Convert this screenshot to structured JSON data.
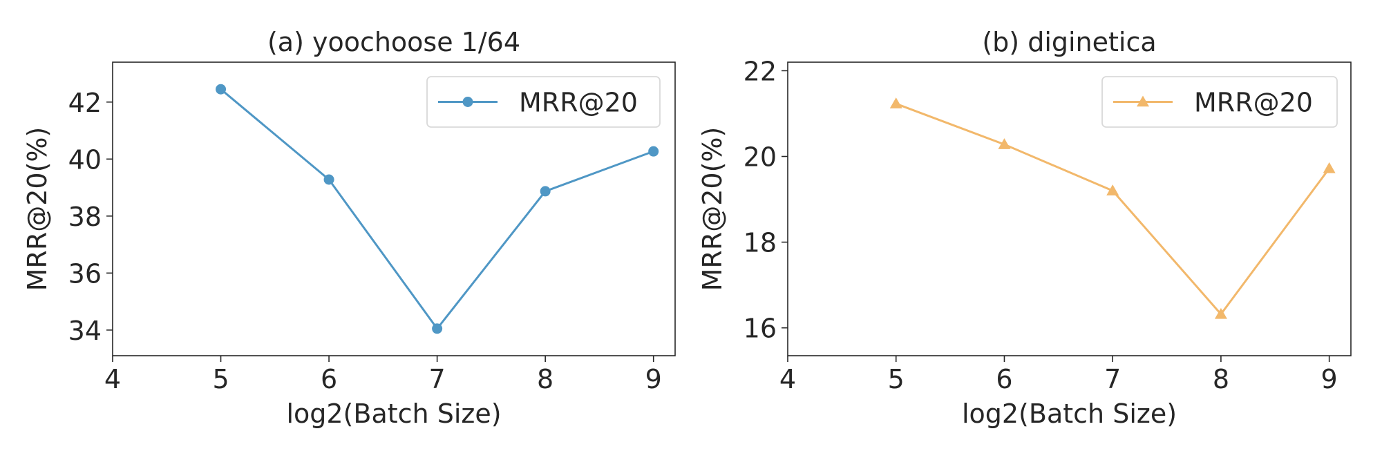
{
  "chart_data": [
    {
      "type": "line",
      "title": "(a) yoochoose 1/64",
      "xlabel": "log2(Batch Size)",
      "ylabel": "MRR@20(%)",
      "x": [
        5,
        6,
        7,
        8,
        9
      ],
      "series": [
        {
          "name": "MRR@20",
          "values": [
            42.45,
            39.28,
            34.05,
            38.87,
            40.27
          ],
          "color": "#4f97c5",
          "marker": "circle"
        }
      ],
      "xlim": [
        4,
        9.2
      ],
      "ylim": [
        33.1,
        43.4
      ],
      "xticks": [
        4,
        5,
        6,
        7,
        8,
        9
      ],
      "yticks": [
        34,
        36,
        38,
        40,
        42
      ],
      "grid": false,
      "legend_position": "top-right"
    },
    {
      "type": "line",
      "title": "(b) diginetica",
      "xlabel": "log2(Batch Size)",
      "ylabel": "MRR@20(%)",
      "x": [
        5,
        6,
        7,
        8,
        9
      ],
      "series": [
        {
          "name": "MRR@20",
          "values": [
            21.23,
            20.28,
            19.2,
            16.32,
            19.72
          ],
          "color": "#f2b86b",
          "marker": "triangle"
        }
      ],
      "xlim": [
        4,
        9.2
      ],
      "ylim": [
        15.35,
        22.2
      ],
      "xticks": [
        4,
        5,
        6,
        7,
        8,
        9
      ],
      "yticks": [
        16,
        18,
        20,
        22
      ],
      "grid": false,
      "legend_position": "top-right"
    }
  ]
}
